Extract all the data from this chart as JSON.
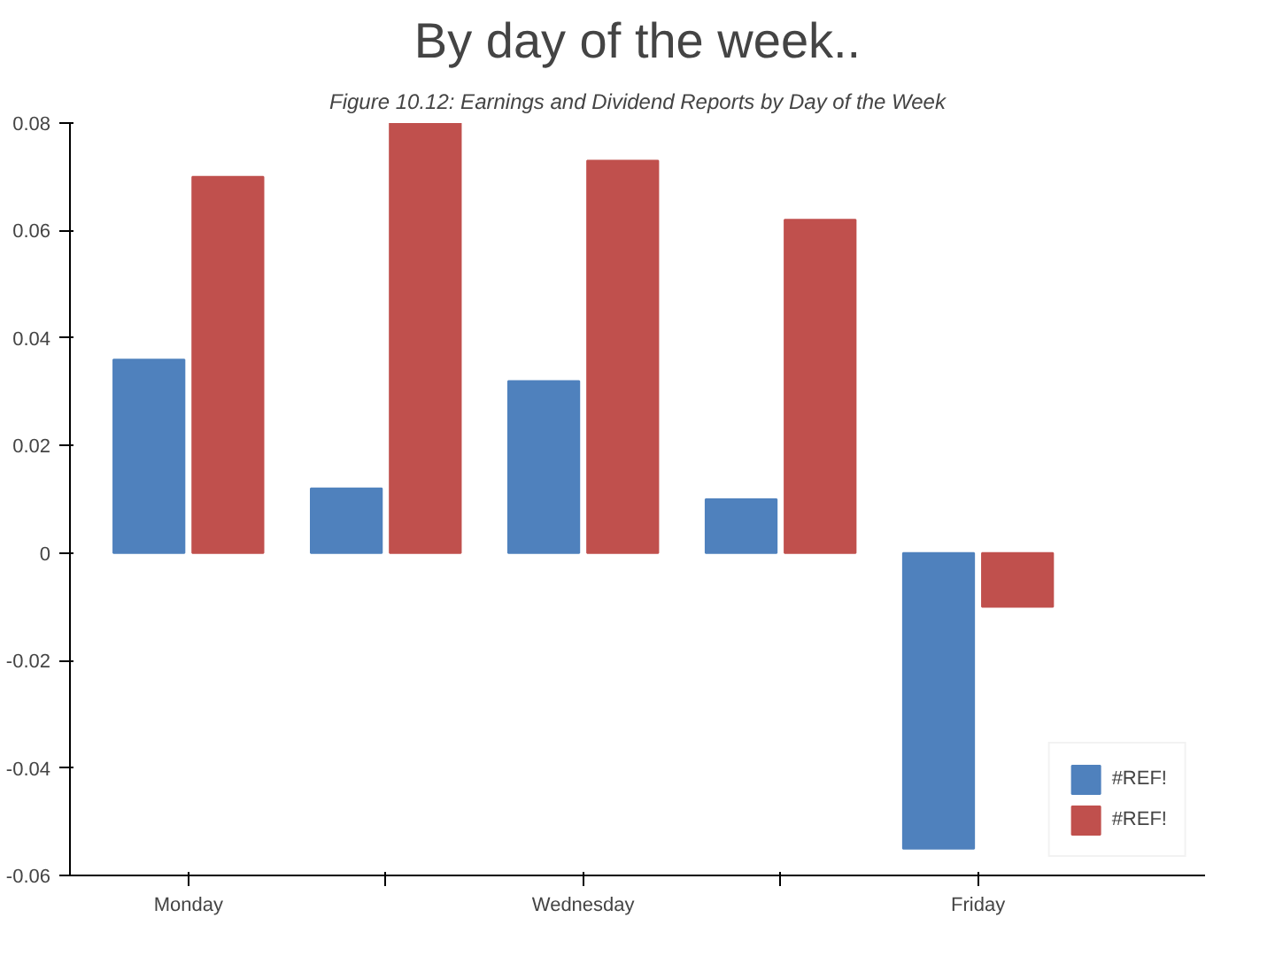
{
  "chart_data": {
    "type": "bar",
    "title": "By day of the week..",
    "subtitle": "Figure 10.12: Earnings and Dividend Reports by Day of the Week",
    "categories": [
      "Monday",
      null,
      "Wednesday",
      null,
      "Friday"
    ],
    "series": [
      {
        "name": "#REF!",
        "color": "#4f81bd",
        "values": [
          0.036,
          0.012,
          0.032,
          0.01,
          -0.055
        ]
      },
      {
        "name": "#REF!",
        "color": "#c0504d",
        "values": [
          0.07,
          0.08,
          0.073,
          0.062,
          -0.01
        ]
      }
    ],
    "ylim": [
      -0.06,
      0.08
    ],
    "yticks": [
      -0.06,
      -0.04,
      -0.02,
      0,
      0.02,
      0.04,
      0.06,
      0.08
    ],
    "grid": false,
    "legend": "bottom right"
  }
}
